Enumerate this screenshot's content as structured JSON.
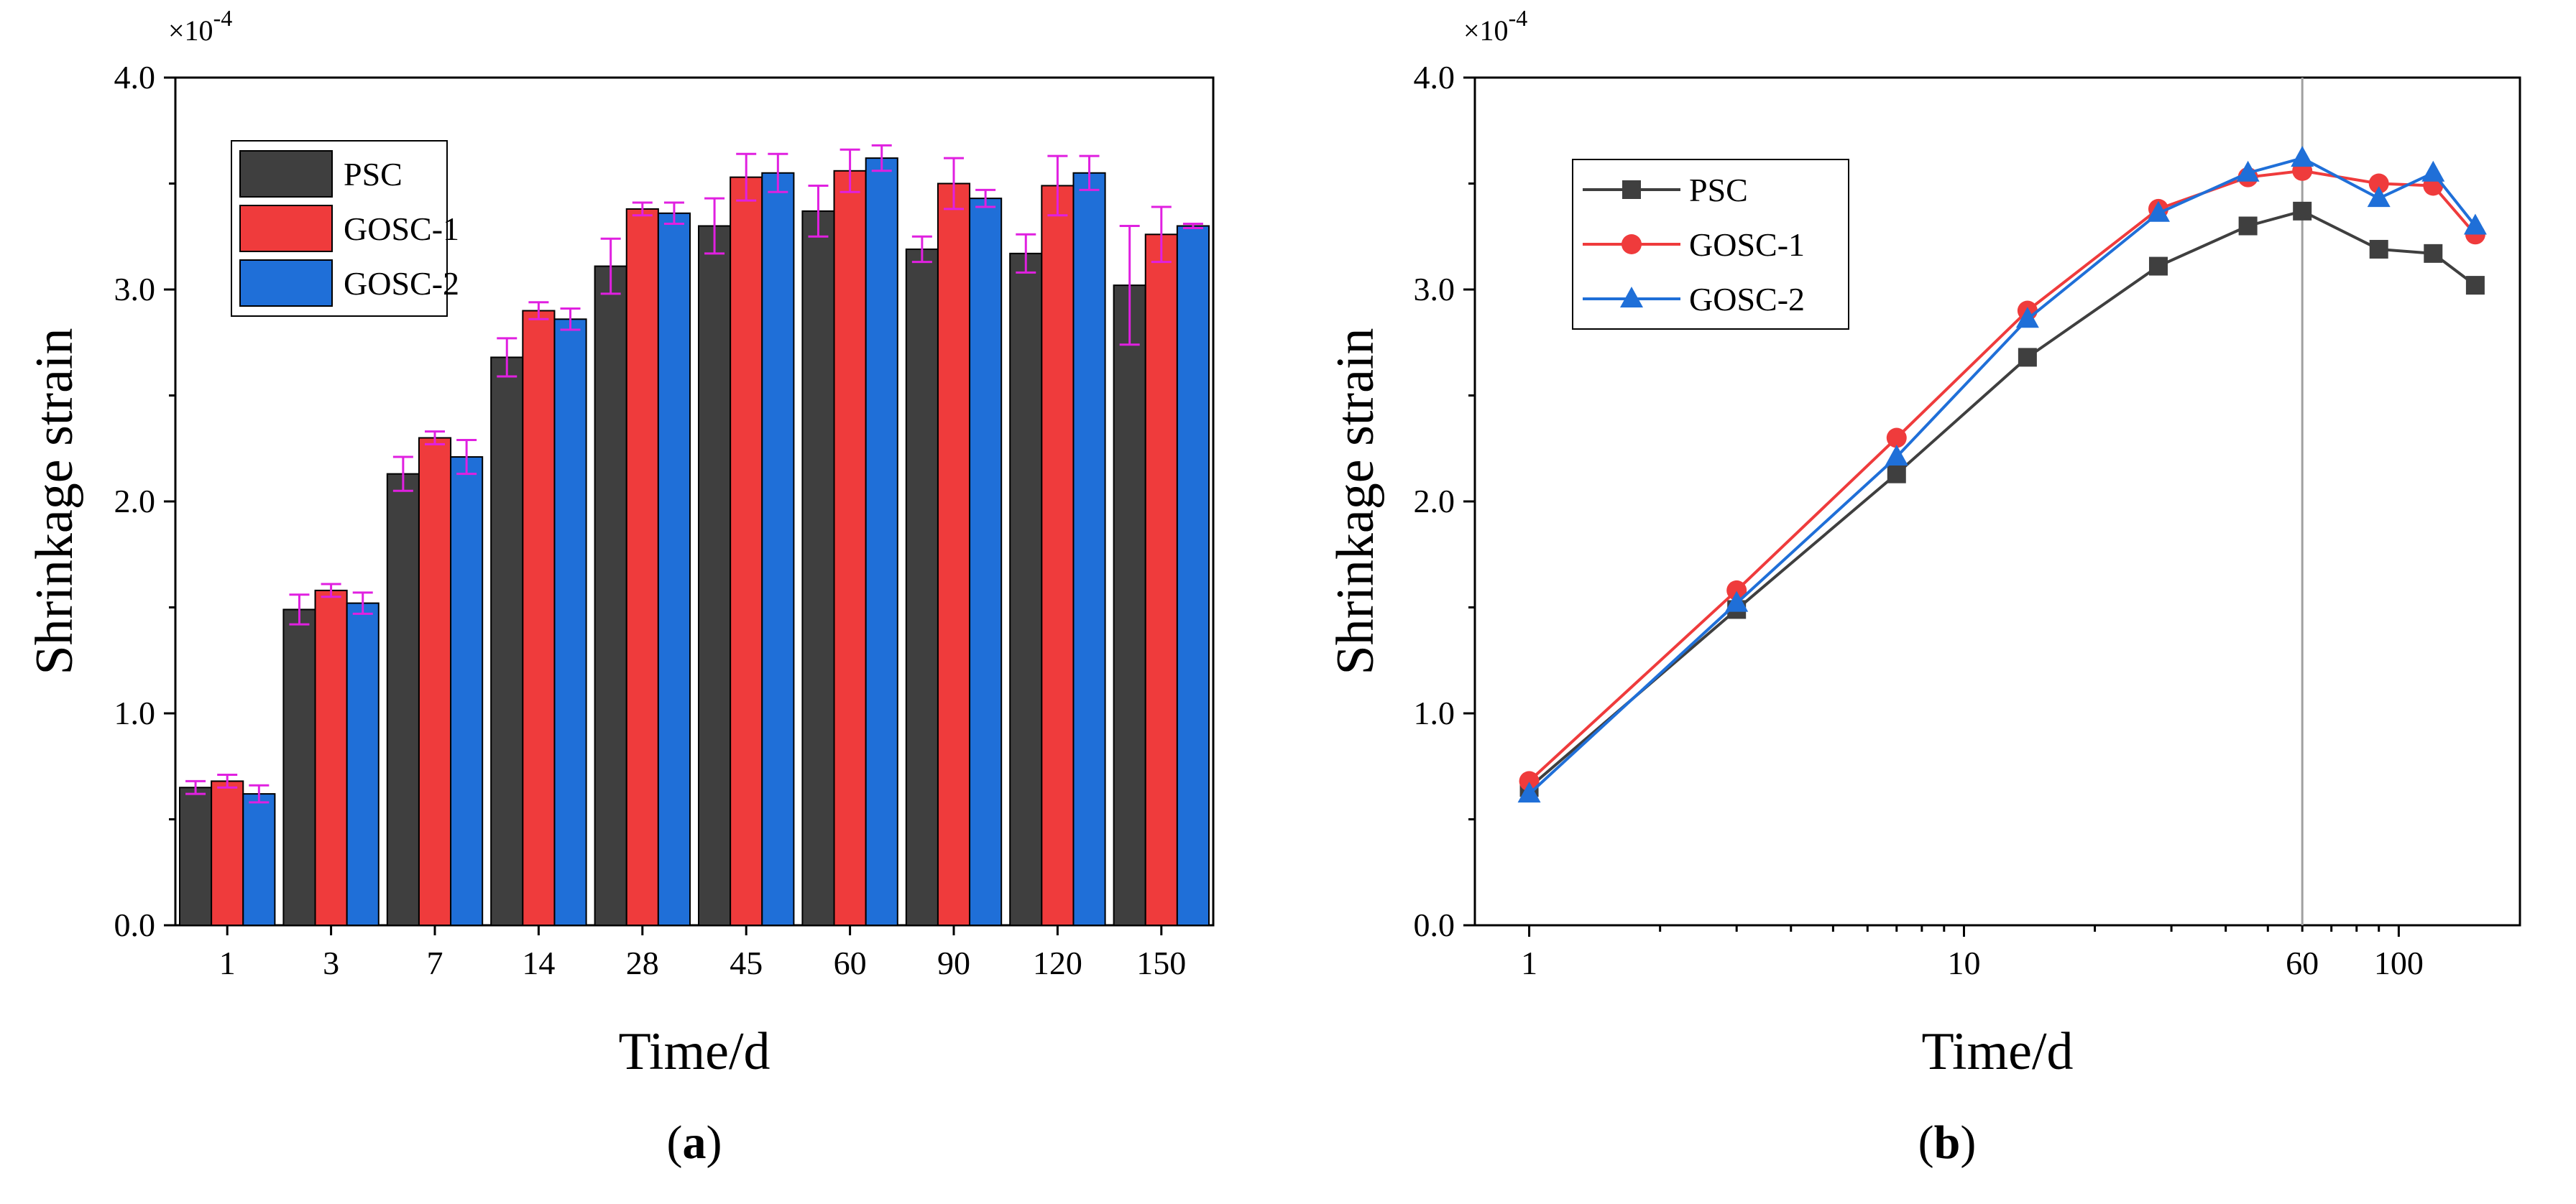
{
  "colors": {
    "PSC": "#3f3f3f",
    "GOSC-1": "#ef3b3c",
    "GOSC-2": "#1f6fd8",
    "error_bar": "#e020e0",
    "axis": "#000000",
    "guide_line": "#a0a0a0"
  },
  "chart_data": [
    {
      "id": "a",
      "type": "bar",
      "caption_letter": "a",
      "caption_open": "(",
      "caption_close": ")",
      "xlabel": "Time/d",
      "ylabel": "Shrinkage strain",
      "y_multiplier": "×10",
      "y_multiplier_exp": "-4",
      "ylim": [
        0,
        4.0
      ],
      "yticks": [
        0,
        1,
        2,
        3,
        4
      ],
      "ytick_labels": [
        "0.0",
        "1.0",
        "2.0",
        "3.0",
        "4.0"
      ],
      "legend_position": "top-left",
      "categories": [
        "1",
        "3",
        "7",
        "14",
        "28",
        "45",
        "60",
        "90",
        "120",
        "150"
      ],
      "series": [
        {
          "name": "PSC",
          "values": [
            0.65,
            1.49,
            2.13,
            2.68,
            3.11,
            3.3,
            3.37,
            3.19,
            3.17,
            3.02
          ],
          "errors": [
            0.03,
            0.07,
            0.08,
            0.09,
            0.13,
            0.13,
            0.12,
            0.06,
            0.09,
            0.28
          ]
        },
        {
          "name": "GOSC-1",
          "values": [
            0.68,
            1.58,
            2.3,
            2.9,
            3.38,
            3.53,
            3.56,
            3.5,
            3.49,
            3.26
          ],
          "errors": [
            0.03,
            0.03,
            0.03,
            0.04,
            0.03,
            0.11,
            0.1,
            0.12,
            0.14,
            0.13
          ]
        },
        {
          "name": "GOSC-2",
          "values": [
            0.62,
            1.52,
            2.21,
            2.86,
            3.36,
            3.55,
            3.62,
            3.43,
            3.55,
            3.3
          ],
          "errors": [
            0.04,
            0.05,
            0.08,
            0.05,
            0.05,
            0.09,
            0.06,
            0.04,
            0.08,
            0.01
          ]
        }
      ]
    },
    {
      "id": "b",
      "type": "line",
      "caption_letter": "b",
      "caption_open": "(",
      "caption_close": ")",
      "xlabel": "Time/d",
      "ylabel": "Shrinkage strain",
      "y_multiplier": "×10",
      "y_multiplier_exp": "-4",
      "x_scale": "log",
      "xlim": [
        0.75,
        190
      ],
      "xticks": [
        1,
        10,
        60,
        100
      ],
      "xtick_labels": [
        "1",
        "10",
        "60",
        "100"
      ],
      "ylim": [
        0,
        4.0
      ],
      "yticks": [
        0,
        1,
        2,
        3,
        4
      ],
      "ytick_labels": [
        "0.0",
        "1.0",
        "2.0",
        "3.0",
        "4.0"
      ],
      "vertical_guide_x": 60,
      "legend_position": "top-left",
      "x": [
        1,
        3,
        7,
        14,
        28,
        45,
        60,
        90,
        120,
        150
      ],
      "series": [
        {
          "name": "PSC",
          "marker": "square",
          "values": [
            0.65,
            1.49,
            2.13,
            2.68,
            3.11,
            3.3,
            3.37,
            3.19,
            3.17,
            3.02
          ]
        },
        {
          "name": "GOSC-1",
          "marker": "circle",
          "values": [
            0.68,
            1.58,
            2.3,
            2.9,
            3.38,
            3.53,
            3.56,
            3.5,
            3.49,
            3.26
          ]
        },
        {
          "name": "GOSC-2",
          "marker": "triangle",
          "values": [
            0.62,
            1.52,
            2.21,
            2.86,
            3.36,
            3.55,
            3.62,
            3.43,
            3.55,
            3.3
          ]
        }
      ]
    }
  ]
}
